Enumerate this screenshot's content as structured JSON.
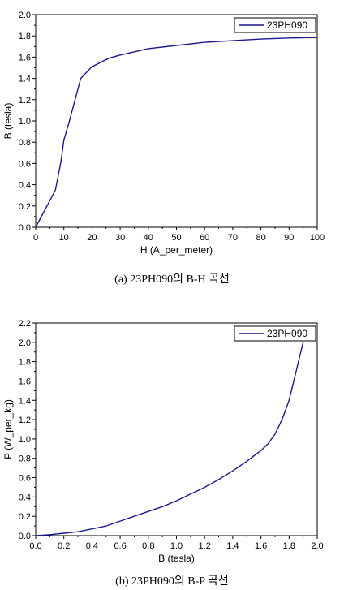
{
  "charts": [
    {
      "type": "line",
      "xlabel": "H (A_per_meter)",
      "ylabel": "B (tesla)",
      "xlim": [
        0,
        100
      ],
      "ylim": [
        0,
        2.0
      ],
      "xticks": [
        0,
        10,
        20,
        30,
        40,
        50,
        60,
        70,
        80,
        90,
        100
      ],
      "xtick_labels": [
        "0",
        "10",
        "20",
        "30",
        "40",
        "50",
        "60",
        "70",
        "80",
        "90",
        "100"
      ],
      "yticks": [
        0,
        0.2,
        0.4,
        0.6,
        0.8,
        1.0,
        1.2,
        1.4,
        1.6,
        1.8,
        2.0
      ],
      "ytick_labels": [
        "0.0",
        "0.2",
        "0.4",
        "0.6",
        "0.8",
        "1.0",
        "1.2",
        "1.4",
        "1.6",
        "1.8",
        "2.0"
      ],
      "legend_position": "top-right",
      "caption": "(a)  23PH090의 B-H 곡선",
      "color": "#1a1a8c",
      "series": [
        {
          "name": "23PH090",
          "x": [
            0,
            7,
            9,
            10,
            12,
            16,
            20,
            26,
            30,
            40,
            50,
            60,
            70,
            80,
            90,
            100
          ],
          "y": [
            0,
            0.35,
            0.62,
            0.82,
            1.0,
            1.4,
            1.51,
            1.59,
            1.62,
            1.68,
            1.71,
            1.74,
            1.755,
            1.77,
            1.78,
            1.785
          ]
        }
      ]
    },
    {
      "type": "line",
      "xlabel": "B (tesla)",
      "ylabel": "P (W_per_kg)",
      "xlim": [
        0,
        2.0
      ],
      "ylim": [
        0,
        2.2
      ],
      "xticks": [
        0,
        0.2,
        0.4,
        0.6,
        0.8,
        1.0,
        1.2,
        1.4,
        1.6,
        1.8,
        2.0
      ],
      "xtick_labels": [
        "0.0",
        "0.2",
        "0.4",
        "0.6",
        "0.8",
        "1.0",
        "1.2",
        "1.4",
        "1.6",
        "1.8",
        "2.0"
      ],
      "yticks": [
        0,
        0.2,
        0.4,
        0.6,
        0.8,
        1.0,
        1.2,
        1.4,
        1.6,
        1.8,
        2.0,
        2.2
      ],
      "ytick_labels": [
        "0.0",
        "0.2",
        "0.4",
        "0.6",
        "0.8",
        "1.0",
        "1.2",
        "1.4",
        "1.6",
        "1.8",
        "2.0",
        "2.2"
      ],
      "legend_position": "top-right",
      "caption": "(b)  23PH090의 B-P  곡선",
      "color": "#1a1a8c",
      "series": [
        {
          "name": "23PH090",
          "x": [
            0,
            0.1,
            0.2,
            0.3,
            0.4,
            0.5,
            0.6,
            0.7,
            0.8,
            0.9,
            1.0,
            1.1,
            1.2,
            1.3,
            1.4,
            1.5,
            1.6,
            1.65,
            1.7,
            1.75,
            1.8,
            1.85,
            1.9
          ],
          "y": [
            0,
            0.01,
            0.025,
            0.04,
            0.07,
            0.1,
            0.15,
            0.2,
            0.25,
            0.3,
            0.36,
            0.43,
            0.5,
            0.58,
            0.67,
            0.77,
            0.88,
            0.95,
            1.05,
            1.2,
            1.4,
            1.7,
            2.0
          ]
        }
      ]
    }
  ]
}
